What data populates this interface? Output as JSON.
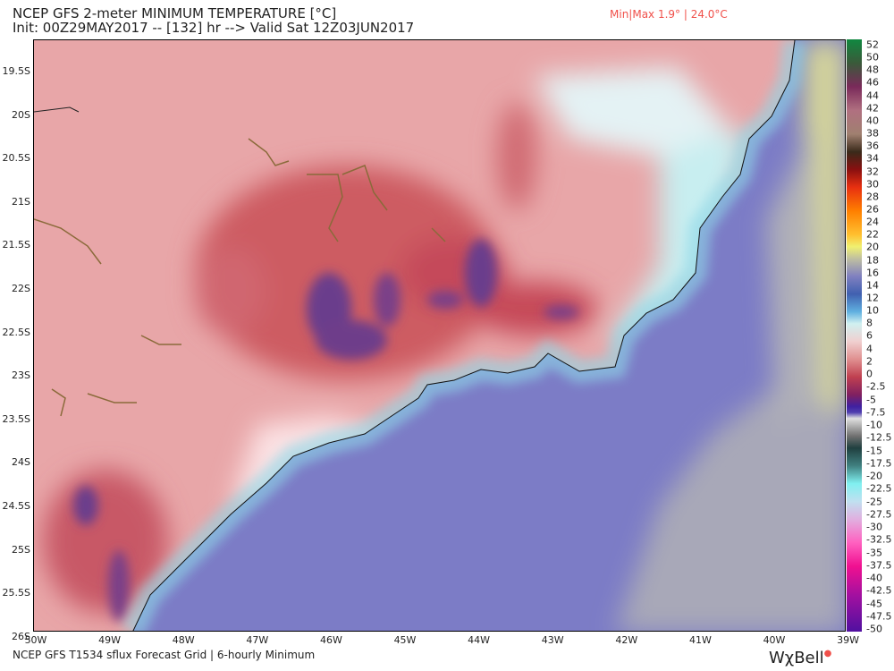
{
  "header": {
    "title": "NCEP GFS 2-meter MINIMUM TEMPERATURE [°C]",
    "subtitle": "Init: 00Z29MAY2017 -- [132] hr --> Valid Sat 12Z03JUN2017",
    "minmax": "Min|Max 1.9° | 24.0°C"
  },
  "map": {
    "lat_labels": [
      "19.5S",
      "20S",
      "20.5S",
      "21S",
      "21.5S",
      "22S",
      "22.5S",
      "23S",
      "23.5S",
      "24S",
      "24.5S",
      "25S",
      "25.5S",
      "26S"
    ],
    "lon_labels": [
      "50W",
      "49W",
      "48W",
      "47W",
      "46W",
      "45W",
      "44W",
      "43W",
      "42W",
      "41W",
      "40W",
      "39W"
    ],
    "min_temp_c": 1.9,
    "max_temp_c": 24.0
  },
  "colorbar": {
    "labels": [
      "52",
      "50",
      "48",
      "46",
      "44",
      "42",
      "40",
      "38",
      "36",
      "34",
      "32",
      "30",
      "28",
      "26",
      "24",
      "22",
      "20",
      "18",
      "16",
      "14",
      "12",
      "10",
      "8",
      "6",
      "4",
      "2",
      "0",
      "-2.5",
      "-5",
      "-7.5",
      "-10",
      "-12.5",
      "-15",
      "-17.5",
      "-20",
      "-22.5",
      "-25",
      "-27.5",
      "-30",
      "-32.5",
      "-35",
      "-37.5",
      "-40",
      "-42.5",
      "-45",
      "-47.5",
      "-50"
    ]
  },
  "footer": {
    "text": "NCEP GFS T1534 sflux Forecast Grid | 6-hourly Minimum",
    "logo": "WχBell"
  }
}
